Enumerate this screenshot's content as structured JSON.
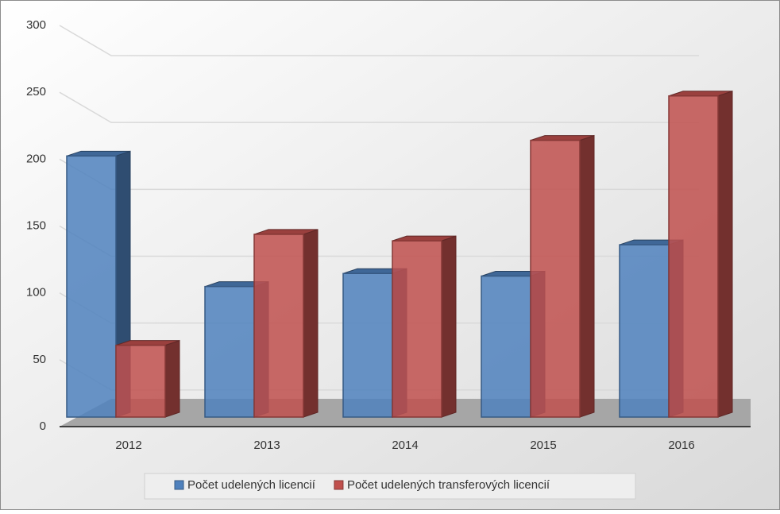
{
  "chart_data": {
    "type": "bar3d",
    "categories": [
      "2012",
      "2013",
      "2014",
      "2015",
      "2016"
    ],
    "series": [
      {
        "name": "Počet udelených licencií",
        "color": "#4f81bd",
        "values": [
          200,
          100,
          110,
          108,
          132
        ]
      },
      {
        "name": "Počet udelených transferových licencií",
        "color": "#c0504d",
        "values": [
          55,
          140,
          135,
          212,
          246
        ]
      }
    ],
    "ylim": [
      0,
      300
    ],
    "yticks": [
      0,
      50,
      100,
      150,
      200,
      250,
      300
    ],
    "grid": true,
    "legend": "bottom"
  }
}
